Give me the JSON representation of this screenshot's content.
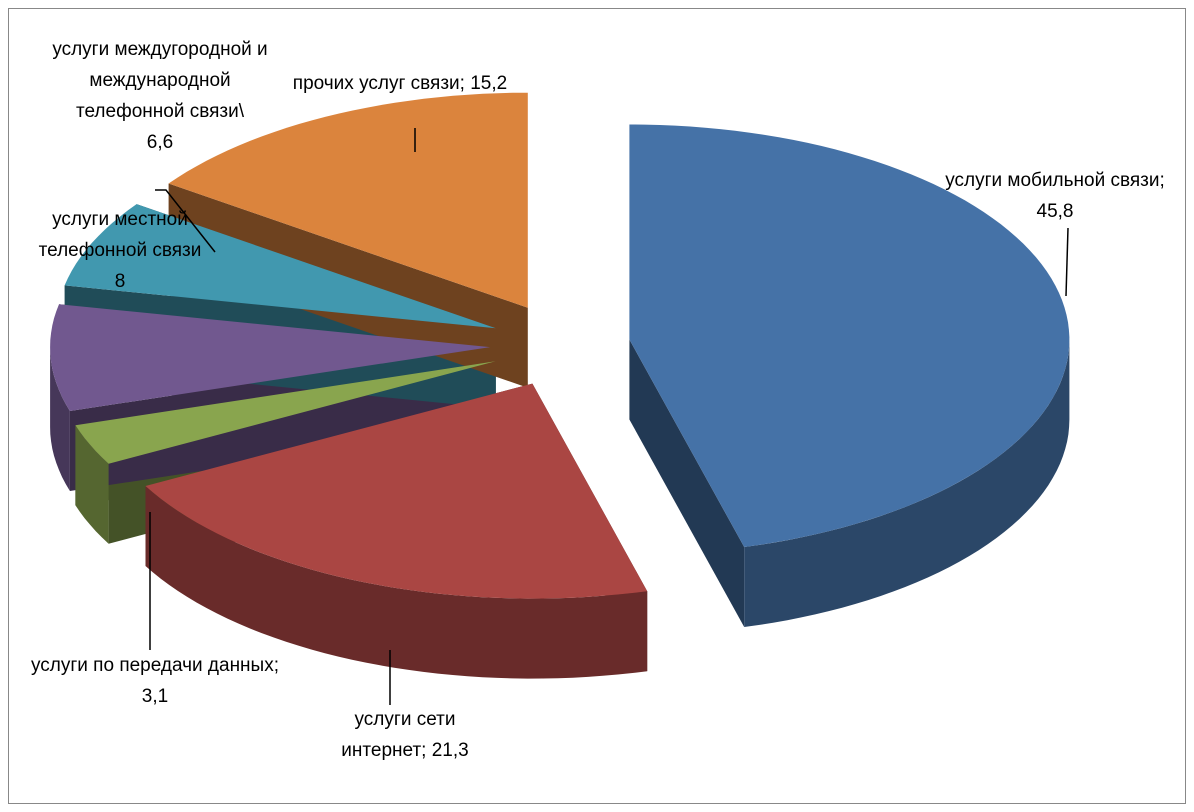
{
  "chart_data": {
    "type": "pie",
    "categories": [
      "услуги мобильной связи;",
      "услуги сети интернет;",
      "услуги по передачи данных;",
      "услуги местной телефонной связи",
      "услуги междугородной и международной телефонной связи\\",
      "прочих услуг связи;"
    ],
    "values": [
      45.8,
      21.3,
      3.1,
      8,
      6.6,
      15.2
    ],
    "value_labels": [
      "45,8",
      "21,3",
      "3,1",
      "8",
      "6,6",
      "15,2"
    ],
    "colors": [
      "#4572a7",
      "#aa4643",
      "#89a54e",
      "#71588f",
      "#4198af",
      "#db843d"
    ]
  }
}
